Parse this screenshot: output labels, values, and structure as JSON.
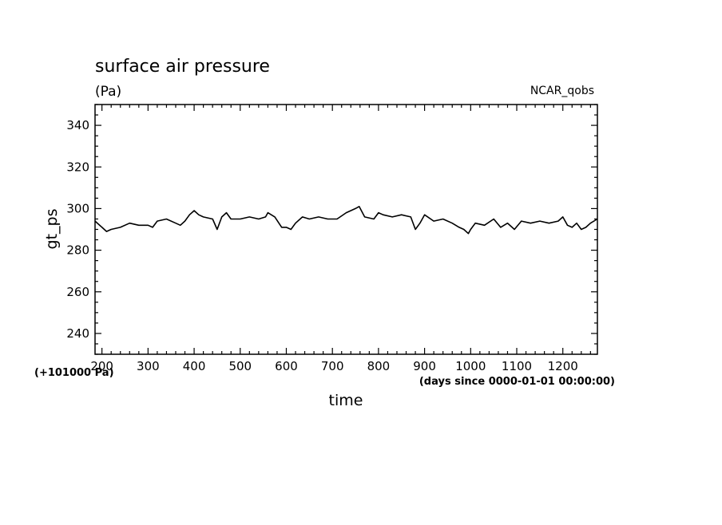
{
  "chart_data": {
    "type": "line",
    "title": "surface air pressure",
    "units": "(Pa)",
    "source_label": "NCAR_qobs",
    "xlabel": "time",
    "ylabel": "gt_ps",
    "x_unit_note": "(days since 0000-01-01 00:00:00)",
    "y_offset_note": "(+101000 Pa)",
    "xlim": [
      185,
      1275
    ],
    "ylim": [
      230,
      350
    ],
    "x_ticks": [
      200,
      300,
      400,
      500,
      600,
      700,
      800,
      900,
      1000,
      1100,
      1200
    ],
    "y_ticks": [
      240,
      260,
      280,
      300,
      320,
      340
    ],
    "grid": false,
    "series": [
      {
        "name": "gt_ps",
        "x": [
          185,
          200,
          210,
          220,
          240,
          260,
          280,
          300,
          310,
          320,
          340,
          360,
          370,
          380,
          390,
          400,
          410,
          420,
          440,
          450,
          460,
          470,
          480,
          500,
          520,
          540,
          555,
          560,
          575,
          590,
          600,
          610,
          620,
          635,
          650,
          670,
          690,
          710,
          730,
          750,
          758,
          770,
          790,
          800,
          810,
          830,
          850,
          870,
          880,
          890,
          900,
          920,
          940,
          960,
          975,
          985,
          995,
          1000,
          1010,
          1030,
          1050,
          1065,
          1080,
          1095,
          1110,
          1130,
          1150,
          1170,
          1190,
          1200,
          1210,
          1220,
          1230,
          1240,
          1250,
          1260,
          1275
        ],
        "values": [
          294,
          291,
          289,
          290,
          291,
          293,
          292,
          292,
          291,
          294,
          295,
          293,
          292,
          294,
          297,
          299,
          297,
          296,
          295,
          290,
          296,
          298,
          295,
          295,
          296,
          295,
          296,
          298,
          296,
          291,
          291,
          290,
          293,
          296,
          295,
          296,
          295,
          295,
          298,
          300,
          301,
          296,
          295,
          298,
          297,
          296,
          297,
          296,
          290,
          293,
          297,
          294,
          295,
          293,
          291,
          290,
          288,
          290,
          293,
          292,
          295,
          291,
          293,
          290,
          294,
          293,
          294,
          293,
          294,
          296,
          292,
          291,
          293,
          290,
          291,
          293,
          295
        ]
      }
    ]
  }
}
